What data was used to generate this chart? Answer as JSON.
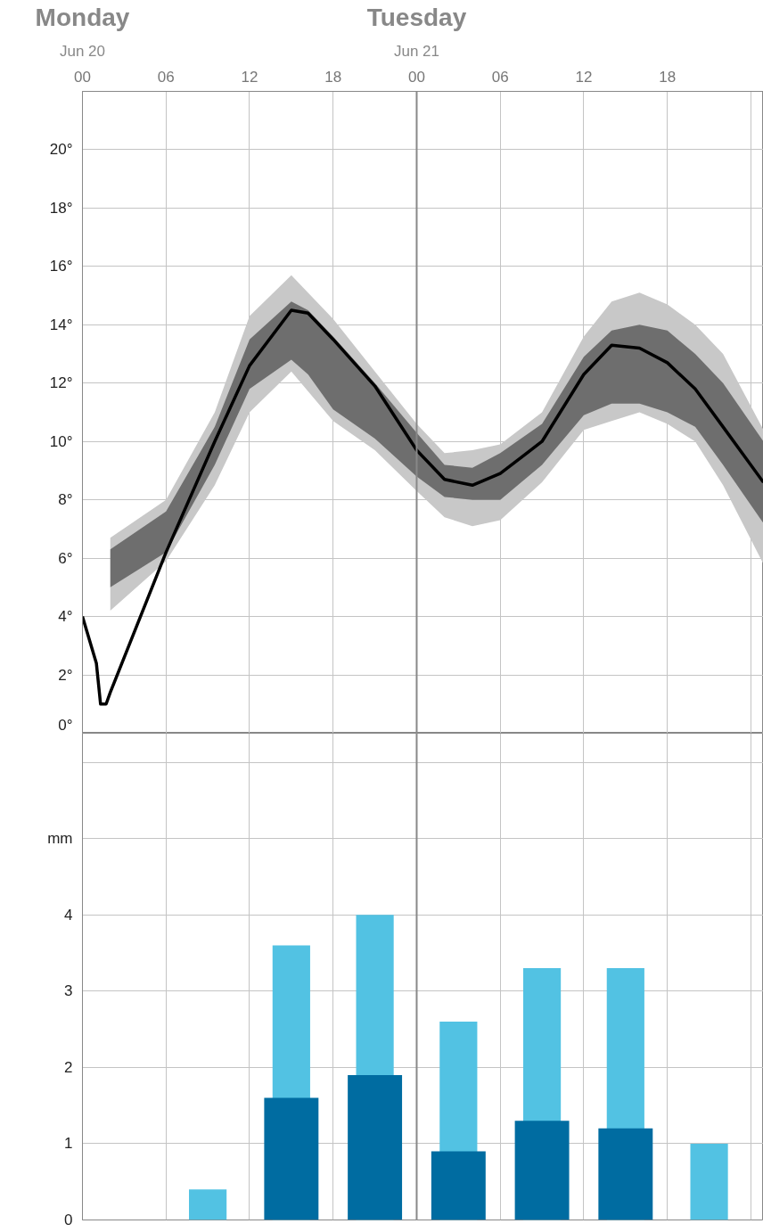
{
  "chart_data": [
    {
      "type": "line",
      "xlim": [
        0,
        48.9
      ],
      "ylim": [
        0,
        22
      ],
      "grid": true,
      "annotations": [
        "Monday",
        "Jun 20",
        "Tuesday",
        "Jun 21"
      ],
      "xticks": [
        {
          "value": 0,
          "label": "00"
        },
        {
          "value": 6,
          "label": "06"
        },
        {
          "value": 12,
          "label": "12"
        },
        {
          "value": 18,
          "label": "18"
        },
        {
          "value": 24,
          "label": "00"
        },
        {
          "value": 30,
          "label": "06"
        },
        {
          "value": 36,
          "label": "12"
        },
        {
          "value": 42,
          "label": "18"
        },
        {
          "value": 48,
          "label": null
        }
      ],
      "yticks": [
        {
          "value": 0,
          "label": "0°"
        },
        {
          "value": 2,
          "label": "2°"
        },
        {
          "value": 4,
          "label": "4°"
        },
        {
          "value": 6,
          "label": "6°"
        },
        {
          "value": 8,
          "label": "8°"
        },
        {
          "value": 10,
          "label": "10°"
        },
        {
          "value": 12,
          "label": "12°"
        },
        {
          "value": 14,
          "label": "14°"
        },
        {
          "value": 16,
          "label": "16°"
        },
        {
          "value": 18,
          "label": "18°"
        },
        {
          "value": 20,
          "label": "20°"
        }
      ],
      "ref_lines": [
        {
          "axis": "x",
          "value": 24,
          "color": "#888888"
        }
      ],
      "series": [
        {
          "type": "line",
          "color": "#c8c8c8",
          "x": [
            2,
            6,
            9.5,
            12,
            15,
            18,
            21,
            24,
            26,
            28,
            30,
            33,
            36,
            38,
            40,
            42,
            44,
            46,
            48.9
          ],
          "values": [
            null,
            null,
            null,
            null,
            null,
            null,
            null,
            null,
            null,
            null,
            null,
            null,
            null,
            null,
            null,
            null,
            null,
            null,
            null
          ],
          "lower": [
            4.2,
            5.9,
            8.5,
            11.0,
            12.4,
            10.7,
            9.7,
            8.3,
            7.4,
            7.1,
            7.3,
            8.6,
            10.4,
            10.7,
            11.0,
            10.6,
            10.0,
            8.5,
            5.8
          ],
          "upper": [
            6.7,
            8.0,
            11.0,
            14.3,
            15.7,
            14.2,
            12.4,
            10.6,
            9.6,
            9.7,
            9.9,
            11.0,
            13.6,
            14.8,
            15.1,
            14.7,
            14.0,
            13.0,
            10.4
          ]
        },
        {
          "type": "line",
          "color": "#000000",
          "x": [
            0,
            1,
            1.3,
            1.7,
            2,
            6,
            9.5,
            12,
            15,
            16.2,
            18,
            21,
            24,
            26,
            28,
            30,
            33,
            36,
            38,
            40,
            42,
            44,
            46,
            48.9
          ],
          "values": [
            4.0,
            2.4,
            1.0,
            1.0,
            1.4,
            6.2,
            10.0,
            12.6,
            14.5,
            14.4,
            13.5,
            11.9,
            9.7,
            8.7,
            8.5,
            8.9,
            10.0,
            12.3,
            13.3,
            13.2,
            12.7,
            11.8,
            10.5,
            8.6
          ],
          "lower": [
            null,
            null,
            null,
            null,
            5.0,
            6.2,
            9.2,
            11.8,
            12.8,
            12.3,
            11.1,
            10.1,
            8.8,
            8.1,
            8.0,
            8.0,
            9.2,
            10.9,
            11.3,
            11.3,
            11.0,
            10.5,
            9.2,
            7.2
          ],
          "upper": [
            null,
            null,
            null,
            null,
            6.3,
            7.6,
            10.5,
            13.5,
            14.8,
            14.5,
            13.6,
            12.0,
            10.3,
            9.2,
            9.1,
            9.6,
            10.6,
            12.9,
            13.8,
            14.0,
            13.8,
            13.0,
            12.0,
            10.0
          ]
        }
      ]
    },
    {
      "type": "bar",
      "xlim": [
        0,
        48.9
      ],
      "ylim": [
        0,
        6.38
      ],
      "grid": true,
      "tick_labels": "y",
      "x": [
        3,
        9,
        15,
        21,
        27,
        33,
        39,
        45
      ],
      "xticks": [
        0,
        6,
        12,
        18,
        24,
        30,
        36,
        42,
        48
      ],
      "yticks": [
        0,
        1,
        2,
        3,
        4,
        {
          "value": 5,
          "label": "mm"
        },
        {
          "value": 6,
          "label": null
        }
      ],
      "ref_lines": [
        {
          "axis": "x",
          "value": 24,
          "color": "#888888"
        }
      ],
      "series": [
        {
          "color": "#52c2e3",
          "values": [
            0,
            0.4,
            3.6,
            4.0,
            2.6,
            3.3,
            3.3,
            1.0
          ]
        },
        {
          "color": "#006ca1",
          "values": [
            0,
            0,
            1.6,
            1.9,
            0.9,
            1.3,
            1.2,
            0
          ]
        }
      ]
    }
  ]
}
